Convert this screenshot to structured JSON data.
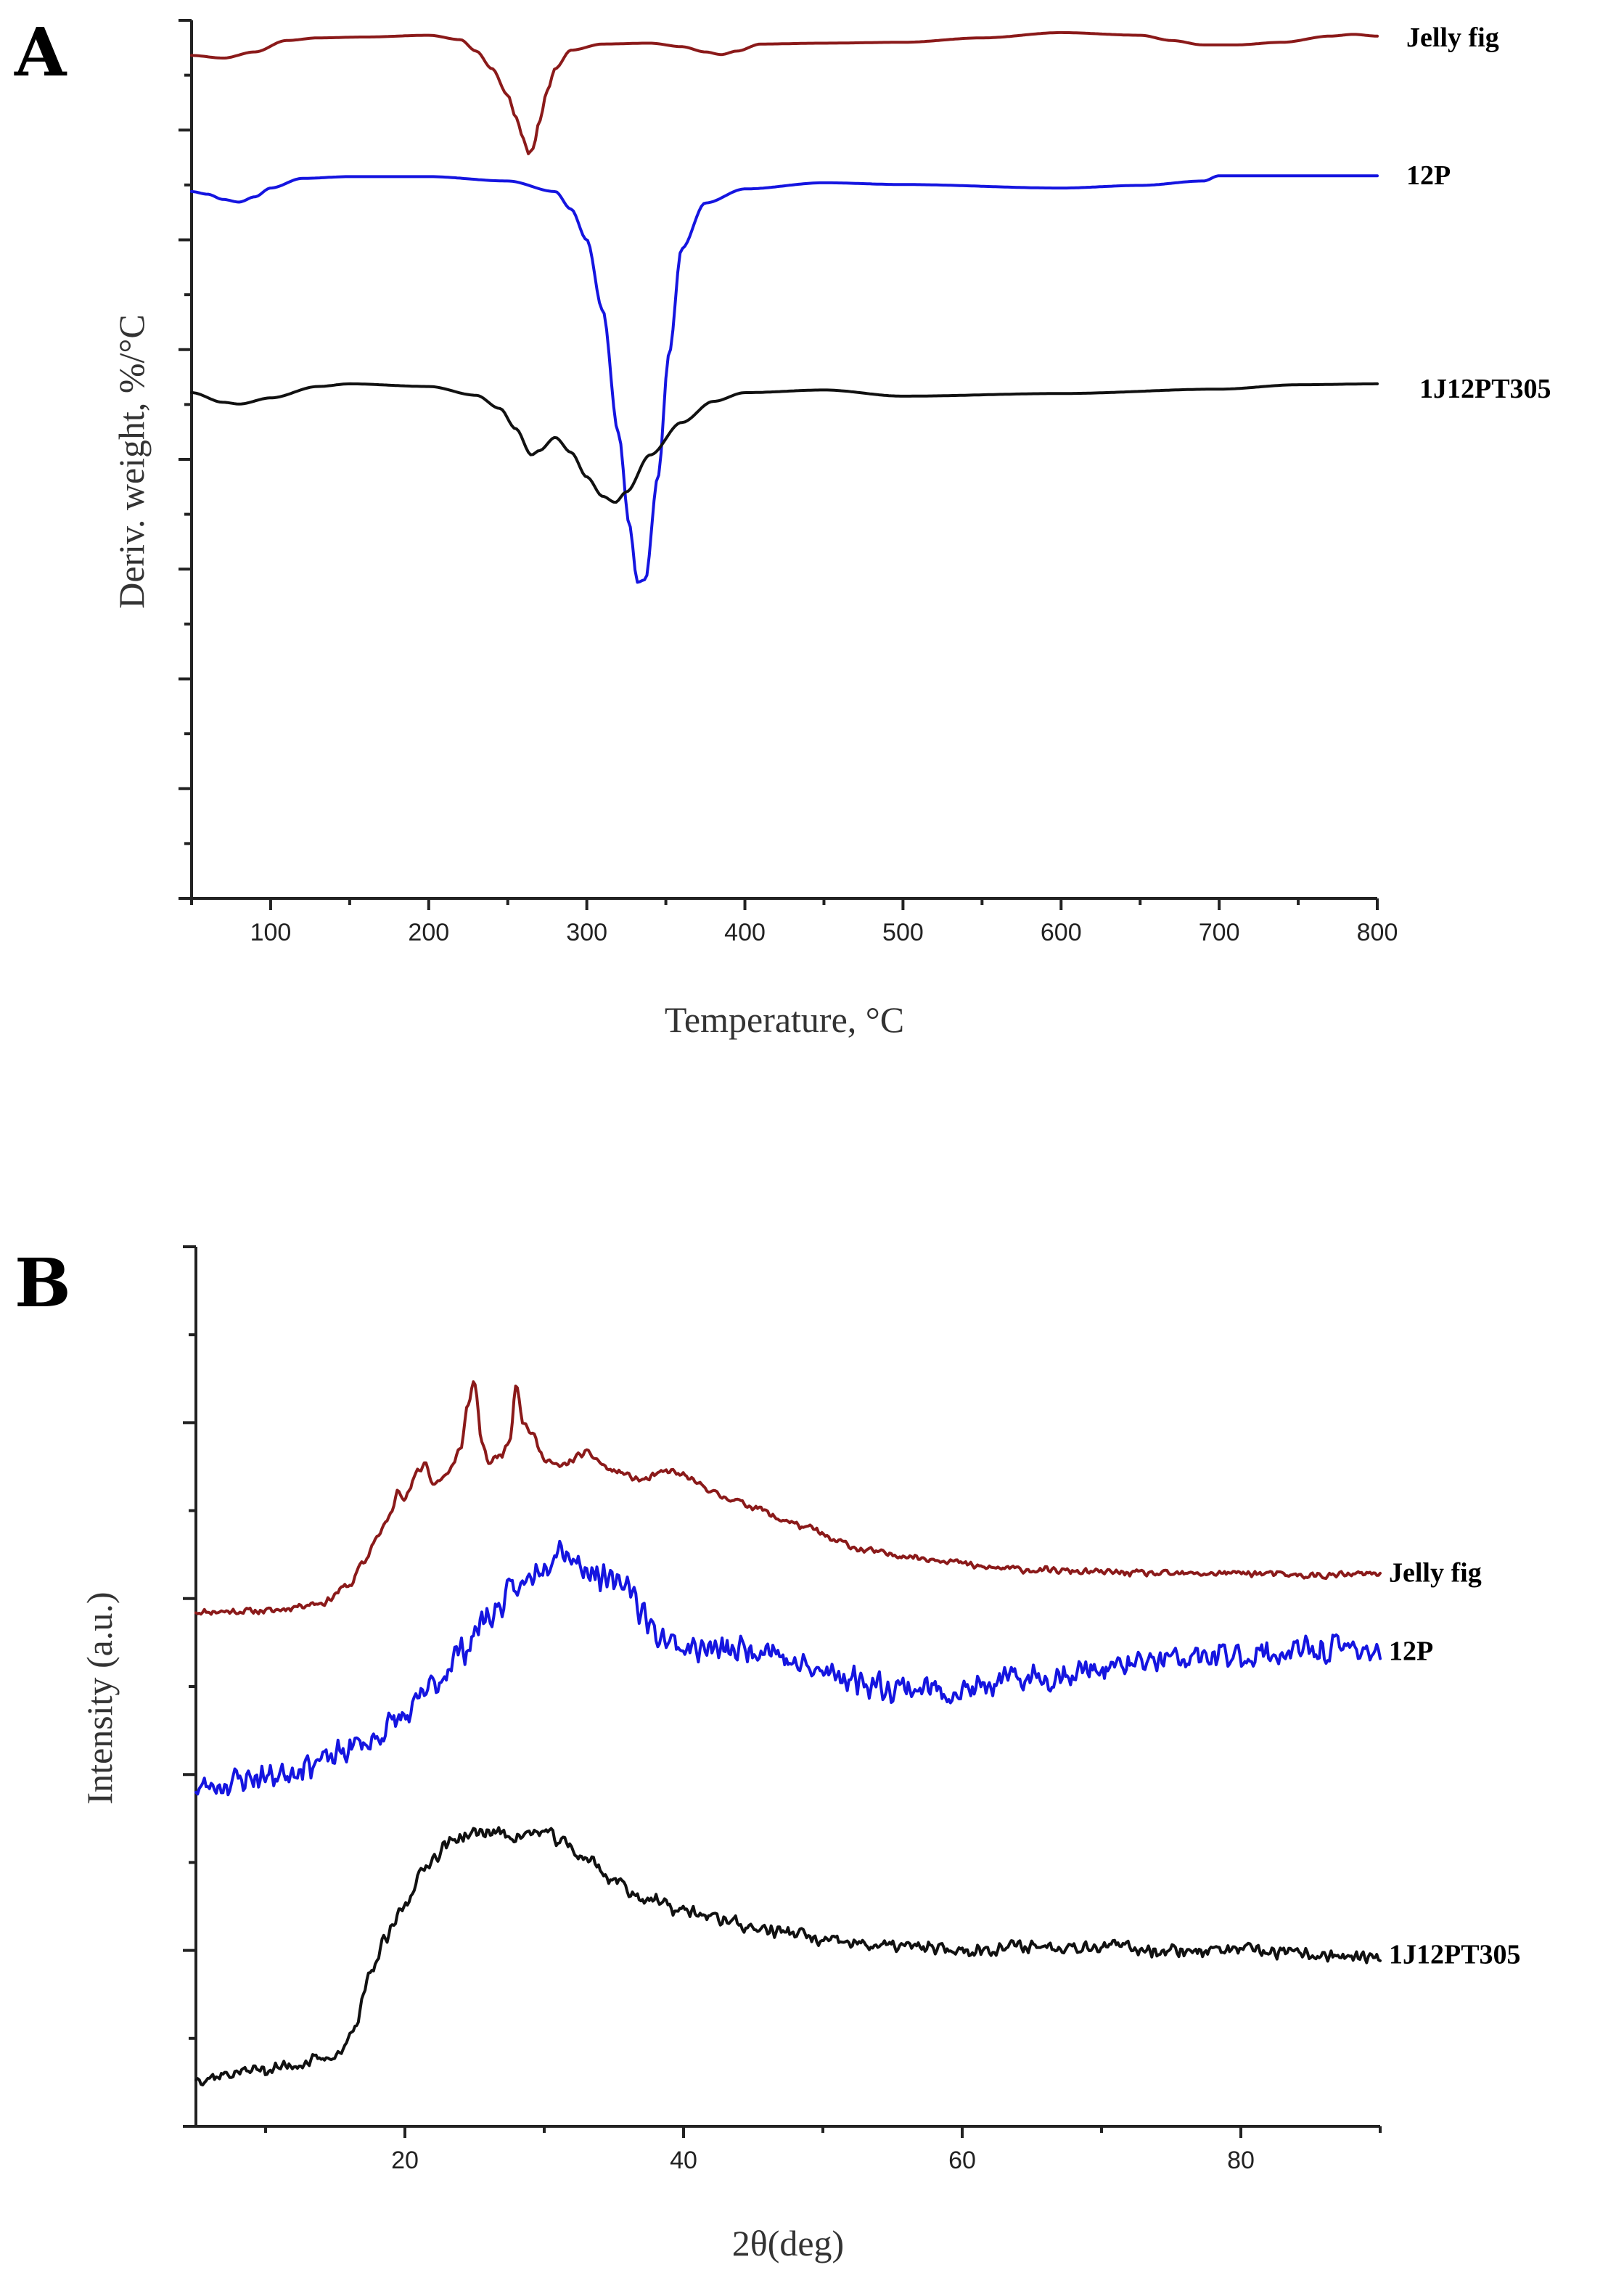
{
  "chart_data": [
    {
      "panel": "A",
      "type": "line",
      "title": "",
      "xlabel": "Temperature, °C",
      "ylabel": "Deriv. weight, %/°C",
      "xlim": [
        50,
        800
      ],
      "ylim": [
        0,
        100
      ],
      "xticks": [
        100,
        200,
        300,
        400,
        500,
        600,
        700,
        800
      ],
      "xtick_labels": [
        "100",
        "200",
        "300",
        "400",
        "500",
        "600",
        "700",
        "800"
      ],
      "yticks_count": 16,
      "grid": false,
      "series": [
        {
          "name": "Jelly fig",
          "color": "#8b1a1a",
          "x": [
            50,
            70,
            90,
            110,
            130,
            160,
            200,
            220,
            230,
            240,
            250,
            255,
            260,
            263,
            266,
            270,
            275,
            280,
            290,
            310,
            340,
            360,
            375,
            385,
            395,
            410,
            450,
            500,
            550,
            600,
            650,
            670,
            690,
            710,
            740,
            770,
            785,
            800
          ],
          "y": [
            96,
            95.7,
            96.4,
            97.7,
            98,
            98.1,
            98.3,
            97.8,
            96.5,
            94.5,
            91.5,
            89,
            86.5,
            84.8,
            85.4,
            88.5,
            92,
            94.5,
            96.6,
            97.3,
            97.4,
            97,
            96.4,
            96.1,
            96.5,
            97.3,
            97.4,
            97.5,
            98,
            98.6,
            98.3,
            97.7,
            97.2,
            97.2,
            97.5,
            98.2,
            98.4,
            98.2
          ],
          "label_value": 98
        },
        {
          "name": "12P",
          "color": "#1515e0",
          "x": [
            50,
            60,
            70,
            80,
            90,
            100,
            120,
            150,
            200,
            250,
            280,
            290,
            300,
            310,
            320,
            327,
            332,
            337,
            345,
            352,
            360,
            375,
            400,
            450,
            500,
            600,
            650,
            690,
            700,
            800
          ],
          "y": [
            80.5,
            80.2,
            79.6,
            79.3,
            79.9,
            80.9,
            82,
            82.2,
            82.2,
            81.7,
            80.5,
            78.5,
            75,
            67,
            53,
            42.5,
            36,
            36.3,
            48,
            62,
            74,
            79.2,
            80.8,
            81.5,
            81.3,
            80.9,
            81.2,
            81.7,
            82.3,
            82.3
          ],
          "label_value": 82.3
        },
        {
          "name": "1J12PT305",
          "color": "#111111",
          "x": [
            50,
            70,
            80,
            100,
            130,
            150,
            200,
            230,
            245,
            255,
            265,
            270,
            280,
            290,
            300,
            310,
            318,
            325,
            340,
            360,
            380,
            400,
            450,
            500,
            600,
            700,
            750,
            800
          ],
          "y": [
            57.6,
            56.5,
            56.3,
            57,
            58.3,
            58.6,
            58.3,
            57.3,
            55.8,
            53.5,
            50.5,
            51,
            52.5,
            50.8,
            48,
            45.8,
            45.1,
            46.3,
            50.5,
            54.2,
            56.6,
            57.6,
            57.9,
            57.2,
            57.5,
            58,
            58.5,
            58.6
          ],
          "label_value": 58
        }
      ]
    },
    {
      "panel": "B",
      "type": "line",
      "title": "",
      "xlabel": "2θ(deg)",
      "ylabel": "Intensity (a.u.)",
      "xlim": [
        5,
        90
      ],
      "ylim": [
        0,
        100
      ],
      "xticks": [
        20,
        40,
        60,
        80
      ],
      "xtick_labels": [
        "20",
        "40",
        "60",
        "80"
      ],
      "yticks_count": 10,
      "grid": false,
      "series": [
        {
          "name": "Jelly fig",
          "color": "#8b1a1a",
          "x": [
            5,
            10,
            14,
            16,
            17,
            18,
            19,
            19.5,
            20,
            21,
            21.5,
            22,
            23,
            24,
            24.5,
            25,
            25.5,
            26,
            27,
            27.5,
            28,
            28.5,
            29,
            30,
            31,
            33,
            35,
            37,
            39,
            40,
            41,
            43,
            45,
            47,
            49,
            51,
            53,
            55,
            58,
            62,
            66,
            70,
            75,
            80,
            85,
            90
          ],
          "y": [
            58.5,
            58.6,
            59.5,
            61.5,
            64,
            67,
            69.5,
            72.5,
            71.5,
            74.5,
            75.5,
            73,
            74,
            77,
            82,
            84.5,
            78,
            75.5,
            76.5,
            78,
            84.5,
            80,
            79,
            76,
            75,
            76.5,
            74.5,
            73.5,
            74.5,
            74,
            73,
            71.5,
            70.5,
            69,
            68,
            66.5,
            65.5,
            65,
            64.5,
            63.5,
            63.2,
            63,
            62.8,
            62.9,
            62.6,
            62.8
          ],
          "noise": 0.45,
          "seed": 11,
          "label_value": 62.9
        },
        {
          "name": "12P",
          "color": "#1515e0",
          "x": [
            5,
            10,
            14,
            17,
            20,
            22,
            24,
            26,
            28,
            30,
            31,
            33,
            35,
            36,
            37,
            38,
            40,
            43,
            46,
            48,
            50,
            55,
            60,
            65,
            70,
            75,
            80,
            85,
            88,
            90
          ],
          "y": [
            38.5,
            39.8,
            41.5,
            43.5,
            46.5,
            50,
            54,
            58,
            61,
            64,
            66,
            63.5,
            61.5,
            62,
            58.5,
            56,
            54.5,
            54,
            54.5,
            52.5,
            51.5,
            50,
            49.5,
            51,
            52,
            53,
            53.5,
            54,
            54.5,
            54
          ],
          "noise": 1.9,
          "seed": 23,
          "label_value": 54
        },
        {
          "name": "1J12PT305",
          "color": "#111111",
          "x": [
            5,
            10,
            14,
            15.5,
            16.5,
            17.5,
            18.5,
            20,
            21,
            22,
            23,
            24,
            26,
            28,
            30,
            31,
            33,
            35,
            37,
            40,
            43,
            45,
            48,
            50,
            55,
            60,
            65,
            70,
            75,
            80,
            85,
            90
          ],
          "y": [
            5.5,
            6.5,
            7.5,
            8.5,
            12,
            17,
            21,
            25,
            28.5,
            30.5,
            32,
            33,
            33.5,
            33,
            33.5,
            32.5,
            30.5,
            28,
            26,
            24.5,
            23.5,
            22.5,
            22,
            21,
            20.5,
            20,
            20.5,
            20.5,
            20,
            20,
            19.5,
            19
          ],
          "noise": 0.9,
          "seed": 37,
          "label_value": 19.5
        }
      ]
    }
  ]
}
